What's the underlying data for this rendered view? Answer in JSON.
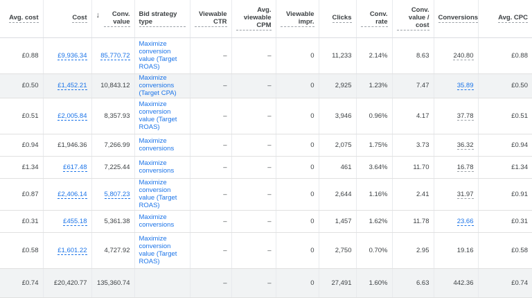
{
  "headers": {
    "avg_cost": "Avg. cost",
    "cost": "Cost",
    "sort_icon": "down-arrow",
    "conv_value": "Conv. value",
    "bid_strategy": "Bid strategy type",
    "viewable_ctr": "Viewable CTR",
    "avg_viewable_cpm": "Avg. viewable CPM",
    "viewable_impr": "Viewable impr.",
    "clicks": "Clicks",
    "conv_rate": "Conv. rate",
    "conv_value_cost": "Conv. value / cost",
    "conversions": "Conversions",
    "avg_cpc": "Avg. CPC"
  },
  "rows": [
    {
      "avg_cost": "£0.88",
      "cost": "£9,936.34",
      "conv_value": "85,770.72",
      "bid": "Maximize conversion value (Target ROAS)",
      "vctr": "–",
      "vcpm": "–",
      "vimpr": "0",
      "clicks": "11,233",
      "conv_rate": "2.14%",
      "cvc": "8.63",
      "conversions": "240.80",
      "avg_cpc": "£0.88"
    },
    {
      "avg_cost": "£0.50",
      "cost": "£1,452.21",
      "conv_value": "10,843.12",
      "bid": "Maximize conversions (Target CPA)",
      "vctr": "–",
      "vcpm": "–",
      "vimpr": "0",
      "clicks": "2,925",
      "conv_rate": "1.23%",
      "cvc": "7.47",
      "conversions": "35.89",
      "avg_cpc": "£0.50"
    },
    {
      "avg_cost": "£0.51",
      "cost": "£2,005.84",
      "conv_value": "8,357.93",
      "bid": "Maximize conversion value (Target ROAS)",
      "vctr": "–",
      "vcpm": "–",
      "vimpr": "0",
      "clicks": "3,946",
      "conv_rate": "0.96%",
      "cvc": "4.17",
      "conversions": "37.78",
      "avg_cpc": "£0.51"
    },
    {
      "avg_cost": "£0.94",
      "cost": "£1,946.36",
      "conv_value": "7,266.99",
      "bid": "Maximize conversions",
      "vctr": "–",
      "vcpm": "–",
      "vimpr": "0",
      "clicks": "2,075",
      "conv_rate": "1.75%",
      "cvc": "3.73",
      "conversions": "36.32",
      "avg_cpc": "£0.94"
    },
    {
      "avg_cost": "£1.34",
      "cost": "£617.48",
      "conv_value": "7,225.44",
      "bid": "Maximize conversions",
      "vctr": "–",
      "vcpm": "–",
      "vimpr": "0",
      "clicks": "461",
      "conv_rate": "3.64%",
      "cvc": "11.70",
      "conversions": "16.78",
      "avg_cpc": "£1.34"
    },
    {
      "avg_cost": "£0.87",
      "cost": "£2,406.14",
      "conv_value": "5,807.23",
      "bid": "Maximize conversion value (Target ROAS)",
      "vctr": "–",
      "vcpm": "–",
      "vimpr": "0",
      "clicks": "2,644",
      "conv_rate": "1.16%",
      "cvc": "2.41",
      "conversions": "31.97",
      "avg_cpc": "£0.91"
    },
    {
      "avg_cost": "£0.31",
      "cost": "£455.18",
      "conv_value": "5,361.38",
      "bid": "Maximize conversions",
      "vctr": "–",
      "vcpm": "–",
      "vimpr": "0",
      "clicks": "1,457",
      "conv_rate": "1.62%",
      "cvc": "11.78",
      "conversions": "23.66",
      "avg_cpc": "£0.31"
    },
    {
      "avg_cost": "£0.58",
      "cost": "£1,601.22",
      "conv_value": "4,727.92",
      "bid": "Maximize conversion value (Target ROAS)",
      "vctr": "–",
      "vcpm": "–",
      "vimpr": "0",
      "clicks": "2,750",
      "conv_rate": "0.70%",
      "cvc": "2.95",
      "conversions": "19.16",
      "avg_cpc": "£0.58"
    }
  ],
  "total": {
    "avg_cost": "£0.74",
    "cost": "£20,420.77",
    "conv_value": "135,360.74",
    "bid": "",
    "vctr": "–",
    "vcpm": "–",
    "vimpr": "0",
    "clicks": "27,491",
    "conv_rate": "1.60%",
    "cvc": "6.63",
    "conversions": "442.36",
    "avg_cpc": "£0.74"
  }
}
